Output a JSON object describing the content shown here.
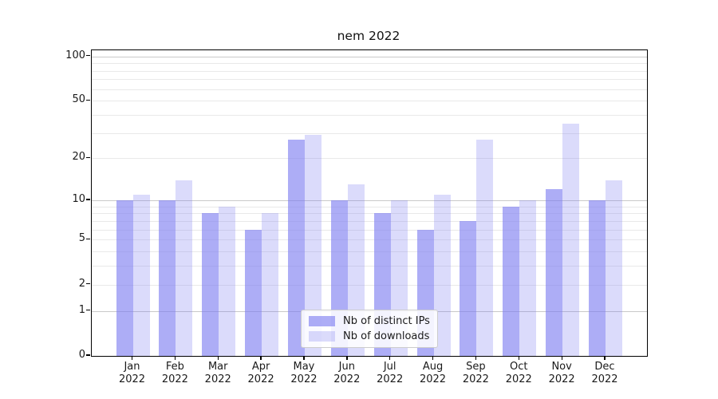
{
  "title": "nem 2022",
  "chart_data": {
    "type": "bar",
    "title": "nem 2022",
    "categories": [
      "Jan",
      "Feb",
      "Mar",
      "Apr",
      "May",
      "Jun",
      "Jul",
      "Aug",
      "Sep",
      "Oct",
      "Nov",
      "Dec"
    ],
    "year_label": "2022",
    "series": [
      {
        "name": "Nb of distinct IPs",
        "color": "#a9a9f4",
        "fill": "rgba(123,123,240,0.62)",
        "values": [
          10,
          10,
          8,
          6,
          27,
          10,
          8,
          6,
          7,
          9,
          12,
          10
        ]
      },
      {
        "name": "Nb of downloads",
        "color": "#dcdcfa",
        "fill": "rgba(123,123,240,0.27)",
        "values": [
          11,
          14,
          9,
          8,
          29,
          13,
          10,
          11,
          27,
          10,
          35,
          14
        ]
      }
    ],
    "yscale": "log10(1+x)",
    "ylim": [
      0,
      110
    ],
    "yticks_labeled": [
      0,
      1,
      2,
      5,
      10,
      20,
      50,
      100
    ],
    "yticks_major": [
      1,
      10,
      100
    ],
    "yticks_minor": [
      2,
      3,
      4,
      5,
      6,
      7,
      8,
      9,
      20,
      30,
      40,
      50,
      60,
      70,
      80,
      90
    ],
    "grid": true,
    "legend": {
      "position": "lower center",
      "items": [
        "Nb of distinct IPs",
        "Nb of downloads"
      ]
    }
  },
  "colors": {
    "axis": "#000000",
    "grid_major": "#c9c9c9",
    "grid_minor": "#e9e9e9",
    "background": "#ffffff",
    "text": "#1a1a1a",
    "legend_border": "#cccccc"
  }
}
